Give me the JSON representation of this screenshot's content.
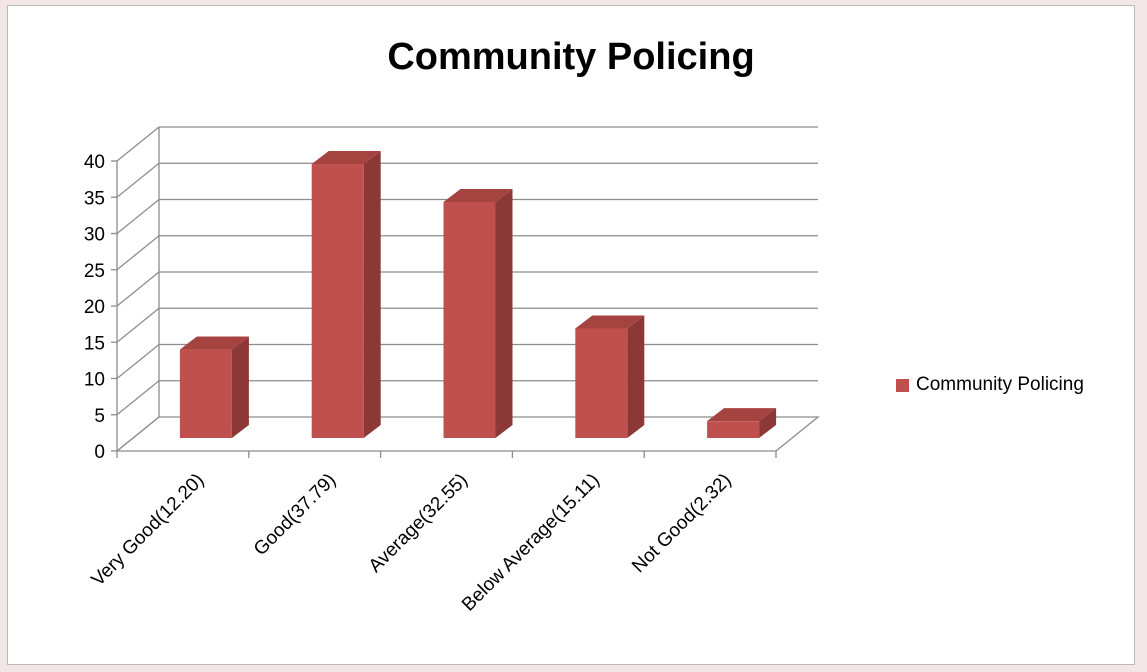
{
  "chart_data": {
    "type": "bar",
    "style": "3d-column",
    "title": "Community Policing",
    "categories": [
      "Very Good(12.20)",
      "Good(37.79)",
      "Average(32.55)",
      "Below Average(15.11)",
      "Not Good(2.32)"
    ],
    "series": [
      {
        "name": "Community Policing",
        "values": [
          12.2,
          37.79,
          32.55,
          15.11,
          2.32
        ]
      }
    ],
    "yticks": [
      "0",
      "5",
      "10",
      "15",
      "20",
      "25",
      "30",
      "35",
      "40"
    ],
    "ylim": [
      0,
      40
    ],
    "grid": true,
    "legend_position": "right",
    "colors": {
      "bar_front": "#c0504d",
      "bar_side": "#8c3836",
      "bar_top": "#a54341",
      "grid": "#8c8c8c"
    }
  }
}
